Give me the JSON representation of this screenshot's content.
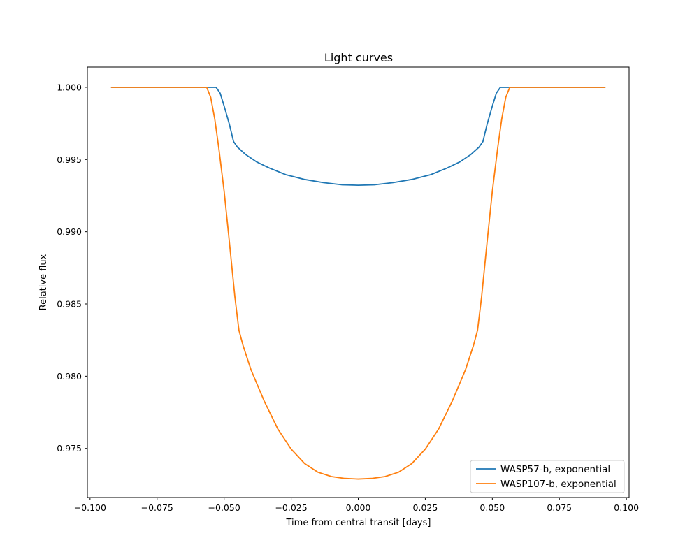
{
  "chart_data": {
    "type": "line",
    "title": "Light curves",
    "xlabel": "Time from central transit [days]",
    "ylabel": "Relative flux",
    "xlim": [
      -0.101,
      0.101
    ],
    "ylim": [
      0.9716,
      1.0014
    ],
    "xticks": [
      -0.1,
      -0.075,
      -0.05,
      -0.025,
      0.0,
      0.025,
      0.05,
      0.075,
      0.1
    ],
    "xtick_labels": [
      "−0.100",
      "−0.075",
      "−0.050",
      "−0.025",
      "0.000",
      "0.025",
      "0.050",
      "0.075",
      "0.100"
    ],
    "yticks": [
      0.975,
      0.98,
      0.985,
      0.99,
      0.995,
      1.0
    ],
    "ytick_labels": [
      "0.975",
      "0.980",
      "0.985",
      "0.990",
      "0.995",
      "1.000"
    ],
    "grid": false,
    "legend_position": "lower-right",
    "series": [
      {
        "name": "WASP57-b, exponential",
        "color": "#1f77b4",
        "points": [
          [
            -0.092,
            1.0
          ],
          [
            -0.053,
            1.0
          ],
          [
            -0.0515,
            0.9996
          ],
          [
            -0.05,
            0.9987
          ],
          [
            -0.048,
            0.9974
          ],
          [
            -0.0465,
            0.99625
          ],
          [
            -0.045,
            0.99585
          ],
          [
            -0.042,
            0.99535
          ],
          [
            -0.038,
            0.99485
          ],
          [
            -0.033,
            0.9944
          ],
          [
            -0.027,
            0.99395
          ],
          [
            -0.02,
            0.99362
          ],
          [
            -0.013,
            0.9934
          ],
          [
            -0.006,
            0.99325
          ],
          [
            0.0,
            0.99322
          ],
          [
            0.006,
            0.99325
          ],
          [
            0.013,
            0.9934
          ],
          [
            0.02,
            0.99362
          ],
          [
            0.027,
            0.99395
          ],
          [
            0.033,
            0.9944
          ],
          [
            0.038,
            0.99485
          ],
          [
            0.042,
            0.99535
          ],
          [
            0.045,
            0.99585
          ],
          [
            0.0465,
            0.99625
          ],
          [
            0.048,
            0.9974
          ],
          [
            0.05,
            0.9987
          ],
          [
            0.0515,
            0.9996
          ],
          [
            0.053,
            1.0
          ],
          [
            0.092,
            1.0
          ]
        ]
      },
      {
        "name": "WASP107-b, exponential",
        "color": "#ff7f0e",
        "points": [
          [
            -0.092,
            1.0
          ],
          [
            -0.0565,
            1.0
          ],
          [
            -0.055,
            0.9993
          ],
          [
            -0.0535,
            0.9978
          ],
          [
            -0.052,
            0.9958
          ],
          [
            -0.05,
            0.9928
          ],
          [
            -0.048,
            0.9892
          ],
          [
            -0.046,
            0.9855
          ],
          [
            -0.0445,
            0.9832
          ],
          [
            -0.043,
            0.98215
          ],
          [
            -0.04,
            0.98045
          ],
          [
            -0.035,
            0.97825
          ],
          [
            -0.03,
            0.97635
          ],
          [
            -0.025,
            0.97495
          ],
          [
            -0.02,
            0.97395
          ],
          [
            -0.015,
            0.97335
          ],
          [
            -0.01,
            0.97305
          ],
          [
            -0.005,
            0.97292
          ],
          [
            0.0,
            0.97288
          ],
          [
            0.005,
            0.97292
          ],
          [
            0.01,
            0.97305
          ],
          [
            0.015,
            0.97335
          ],
          [
            0.02,
            0.97395
          ],
          [
            0.025,
            0.97495
          ],
          [
            0.03,
            0.97635
          ],
          [
            0.035,
            0.97825
          ],
          [
            0.04,
            0.98045
          ],
          [
            0.043,
            0.98215
          ],
          [
            0.0445,
            0.9832
          ],
          [
            0.046,
            0.9855
          ],
          [
            0.048,
            0.9892
          ],
          [
            0.05,
            0.9928
          ],
          [
            0.052,
            0.9958
          ],
          [
            0.0535,
            0.9978
          ],
          [
            0.055,
            0.9993
          ],
          [
            0.0565,
            1.0
          ],
          [
            0.092,
            1.0
          ]
        ]
      }
    ]
  }
}
